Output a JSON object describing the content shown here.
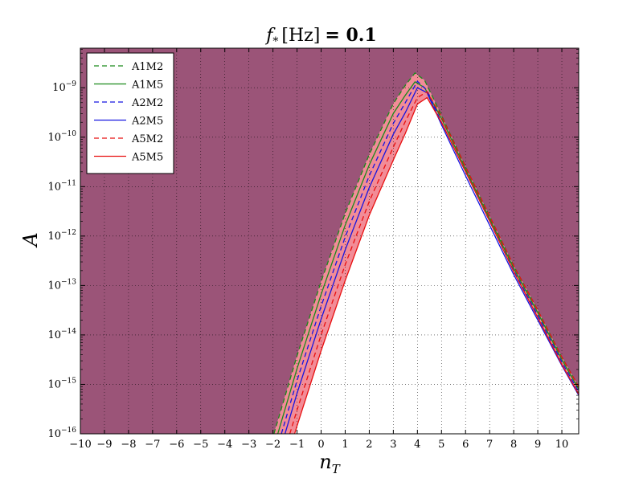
{
  "chart_data": {
    "type": "line",
    "title": "f_* [Hz] = 0.1",
    "title_parts": {
      "f": "f",
      "sub": "*",
      "unit": "[Hz]",
      "eq": "= 0.1"
    },
    "xlabel": "n_T",
    "xlabel_parts": {
      "main": "n",
      "sub": "T"
    },
    "ylabel": "A",
    "xlim": [
      -10,
      10.7
    ],
    "ylim_log10": [
      -16,
      -8.2
    ],
    "y_scale": "log",
    "grid": true,
    "legend_position": "top-left",
    "x_ticks": [
      -10,
      -9,
      -8,
      -7,
      -6,
      -5,
      -4,
      -3,
      -2,
      -1,
      0,
      1,
      2,
      3,
      4,
      5,
      6,
      7,
      8,
      9,
      10
    ],
    "x_tick_labels": [
      "−10",
      "−9",
      "−8",
      "−7",
      "−6",
      "−5",
      "−4",
      "−3",
      "−2",
      "−1",
      "0",
      "1",
      "2",
      "3",
      "4",
      "5",
      "6",
      "7",
      "8",
      "9",
      "10"
    ],
    "y_ticks": [
      -16,
      -15,
      -14,
      -13,
      -12,
      -11,
      -10,
      -9
    ],
    "y_tick_base": "10",
    "y_tick_exponents": [
      "−16",
      "−15",
      "−14",
      "−13",
      "−12",
      "−11",
      "−10",
      "−9"
    ],
    "colors": {
      "excluded_region": "#9b5478",
      "band_fill": "#f28c97",
      "green": "#1a8a1a",
      "blue": "#1515e0",
      "red": "#e81010"
    },
    "series": [
      {
        "name": "A1M2",
        "color": "green",
        "dash": true,
        "x": [
          -1.96,
          -1.0,
          0.0,
          1.0,
          2.0,
          3.0,
          3.5,
          3.9,
          4.3,
          5.0,
          6.0,
          7.0,
          8.0,
          9.0,
          10.0,
          10.7
        ],
        "log10y": [
          -16.0,
          -14.42,
          -12.92,
          -11.54,
          -10.35,
          -9.32,
          -8.95,
          -8.7,
          -8.85,
          -9.56,
          -10.6,
          -11.6,
          -12.6,
          -13.5,
          -14.45,
          -15.05
        ]
      },
      {
        "name": "A1M5",
        "color": "green",
        "dash": false,
        "x": [
          -1.8,
          -1.0,
          0.0,
          1.0,
          2.0,
          3.0,
          3.5,
          3.9,
          4.3,
          5.0,
          6.0,
          7.0,
          8.0,
          9.0,
          10.0,
          10.7
        ],
        "log10y": [
          -16.0,
          -14.68,
          -13.18,
          -11.78,
          -10.56,
          -9.52,
          -9.15,
          -8.88,
          -9.0,
          -9.62,
          -10.65,
          -11.65,
          -12.65,
          -13.55,
          -14.5,
          -15.1
        ]
      },
      {
        "name": "A2M2",
        "color": "blue",
        "dash": true,
        "x": [
          -1.65,
          -1.0,
          0.0,
          1.0,
          2.0,
          3.0,
          3.5,
          4.0,
          4.4,
          5.0,
          6.0,
          7.0,
          8.0,
          9.0,
          10.0,
          10.7
        ],
        "log10y": [
          -16.0,
          -14.92,
          -13.42,
          -12.02,
          -10.78,
          -9.72,
          -9.3,
          -8.87,
          -9.05,
          -9.7,
          -10.7,
          -11.7,
          -12.7,
          -13.6,
          -14.55,
          -15.15
        ]
      },
      {
        "name": "A2M5",
        "color": "blue",
        "dash": false,
        "x": [
          -1.5,
          -1.0,
          0.0,
          1.0,
          2.0,
          3.0,
          3.5,
          4.0,
          4.4,
          5.0,
          6.0,
          7.0,
          8.0,
          9.0,
          10.0,
          10.7
        ],
        "log10y": [
          -16.0,
          -15.18,
          -13.68,
          -12.28,
          -11.02,
          -9.94,
          -9.5,
          -9.0,
          -9.1,
          -9.75,
          -10.78,
          -11.78,
          -12.78,
          -13.7,
          -14.62,
          -15.22
        ]
      },
      {
        "name": "A5M2",
        "color": "red",
        "dash": true,
        "x": [
          -1.3,
          -1.0,
          0.0,
          1.0,
          2.0,
          3.0,
          3.5,
          4.0,
          4.4,
          5.0,
          6.0,
          7.0,
          8.0,
          9.0,
          10.0,
          10.7
        ],
        "log10y": [
          -16.0,
          -15.52,
          -14.0,
          -12.58,
          -11.3,
          -10.2,
          -9.68,
          -9.2,
          -9.08,
          -9.58,
          -10.6,
          -11.6,
          -12.6,
          -13.5,
          -14.45,
          -15.05
        ]
      },
      {
        "name": "A5M5",
        "color": "red",
        "dash": false,
        "x": [
          -1.1,
          -1.0,
          0.0,
          1.0,
          2.0,
          3.0,
          3.5,
          4.0,
          4.4,
          5.0,
          6.0,
          7.0,
          8.0,
          9.0,
          10.0,
          10.7
        ],
        "log10y": [
          -16.0,
          -15.84,
          -14.32,
          -12.9,
          -11.58,
          -10.46,
          -9.92,
          -9.33,
          -9.2,
          -9.7,
          -10.7,
          -11.7,
          -12.72,
          -13.65,
          -14.6,
          -15.2
        ]
      }
    ]
  }
}
